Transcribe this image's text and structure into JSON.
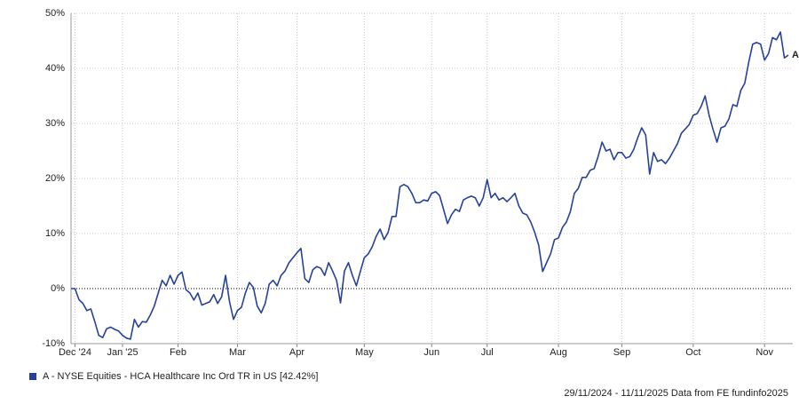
{
  "chart_data": {
    "type": "line",
    "categories": [
      null,
      "Dec '24",
      null,
      null,
      null,
      null,
      null,
      null,
      null,
      null,
      null,
      null,
      null,
      "Jan '25",
      null,
      null,
      null,
      null,
      null,
      null,
      null,
      null,
      null,
      null,
      null,
      null,
      null,
      "Feb",
      null,
      null,
      null,
      null,
      null,
      null,
      null,
      null,
      null,
      null,
      null,
      null,
      null,
      null,
      "Mar",
      null,
      null,
      null,
      null,
      null,
      null,
      null,
      null,
      null,
      null,
      null,
      null,
      null,
      null,
      "Apr",
      null,
      null,
      null,
      null,
      null,
      null,
      null,
      null,
      null,
      null,
      null,
      null,
      null,
      null,
      null,
      null,
      "May",
      null,
      null,
      null,
      null,
      null,
      null,
      null,
      null,
      null,
      null,
      null,
      null,
      null,
      null,
      null,
      null,
      "Jun",
      null,
      null,
      null,
      null,
      null,
      null,
      null,
      null,
      null,
      null,
      null,
      null,
      null,
      "Jul",
      null,
      null,
      null,
      null,
      null,
      null,
      null,
      null,
      null,
      null,
      null,
      null,
      null,
      null,
      null,
      null,
      null,
      "Aug",
      null,
      null,
      null,
      null,
      null,
      null,
      null,
      null,
      null,
      null,
      null,
      null,
      null,
      null,
      null,
      "Sep",
      null,
      null,
      null,
      null,
      null,
      null,
      null,
      null,
      null,
      null,
      null,
      null,
      null,
      null,
      null,
      null,
      null,
      "Oct",
      null,
      null,
      null,
      null,
      null,
      null,
      null,
      null,
      null,
      null,
      null,
      null,
      null,
      null,
      null,
      null,
      null,
      "Nov",
      null,
      null,
      null,
      null,
      null,
      null
    ],
    "series": [
      {
        "name": "A - NYSE Equities - HCA Healthcare Inc Ord TR in US [42.42%]",
        "end_label": "A",
        "color": "#27419a",
        "values": [
          0,
          0,
          -2,
          -2.7,
          -4,
          -3.7,
          -6,
          -8.5,
          -8.9,
          -7.3,
          -7,
          -7.4,
          -7.7,
          -8.5,
          -9,
          -9.2,
          -5.6,
          -7,
          -6,
          -6.1,
          -4.8,
          -3.2,
          -0.8,
          1.5,
          0.5,
          2.4,
          0.8,
          2.4,
          3,
          -0.2,
          -0.8,
          -2.1,
          -0.8,
          -3,
          -2.7,
          -2.4,
          -1.1,
          -2.7,
          -1.5,
          2.4,
          -2.4,
          -5.6,
          -4,
          -3.4,
          -0.8,
          1.1,
          0.2,
          -3.2,
          -4.4,
          -2.7,
          0.8,
          1.5,
          0.5,
          2.4,
          3.2,
          4.7,
          5.6,
          6.5,
          7.3,
          1.8,
          1.1,
          3.4,
          4,
          3.7,
          2.4,
          4.7,
          3.2,
          1.5,
          -2.6,
          3.2,
          4.7,
          2.4,
          0.5,
          3.1,
          5.6,
          6.3,
          7.6,
          9.5,
          10.8,
          8.9,
          10.2,
          13.1,
          13.1,
          18.5,
          18.9,
          18.5,
          17.3,
          15.6,
          15.6,
          16.1,
          15.9,
          17.3,
          17.6,
          16.9,
          14.4,
          11.8,
          13.4,
          14.4,
          14,
          16.1,
          16.5,
          16.8,
          16.5,
          15,
          16.5,
          19.8,
          16.5,
          17.3,
          16.1,
          16.5,
          15.8,
          16.5,
          17.3,
          15,
          13.7,
          13.4,
          12.1,
          10.2,
          7.9,
          3.1,
          4.7,
          6.3,
          8.9,
          9.2,
          11.1,
          12.1,
          14,
          17.3,
          18.2,
          20.2,
          20.2,
          21.5,
          21.8,
          24,
          26.6,
          25,
          25.3,
          23.4,
          24.7,
          24.7,
          23.7,
          24,
          25.3,
          27.4,
          29.2,
          27.9,
          20.8,
          24.7,
          23.1,
          23.4,
          22.7,
          23.7,
          25,
          26.3,
          28.2,
          29,
          29.8,
          31.5,
          31.8,
          33.1,
          35,
          31.5,
          28.9,
          26.6,
          29.2,
          29.5,
          30.8,
          33.4,
          33.1,
          36,
          37.3,
          41.1,
          44.4,
          44.7,
          44.4,
          41.5,
          42.7,
          45.6,
          45.2,
          46.6,
          41.9,
          42.42
        ]
      }
    ],
    "ylim": [
      -10,
      50
    ],
    "yticks": [
      {
        "value": -10,
        "label": "-10%"
      },
      {
        "value": 0,
        "label": "0%"
      },
      {
        "value": 10,
        "label": "10%"
      },
      {
        "value": 20,
        "label": "20%"
      },
      {
        "value": 30,
        "label": "30%"
      },
      {
        "value": 40,
        "label": "40%"
      },
      {
        "value": 50,
        "label": "50%"
      }
    ],
    "grid": true,
    "footer": "29/11/2024 - 11/11/2025 Data from FE fundinfo2025"
  }
}
